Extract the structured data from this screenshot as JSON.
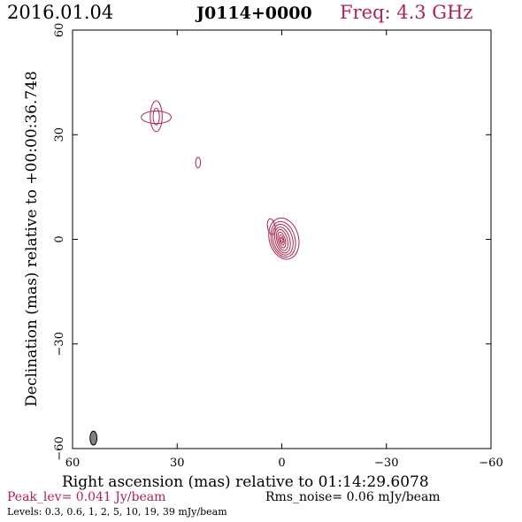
{
  "header": {
    "date": "2016.01.04",
    "source": "J0114+0000",
    "freq": "Freq: 4.3 GHz"
  },
  "footer": {
    "peak": "Peak_lev=  0.041 Jy/beam",
    "rms": "Rms_noise= 0.06 mJy/beam",
    "levels": "Levels: 0.3, 0.6,    1,    2,    5,   10,   19,   39 mJy/beam"
  },
  "colors": {
    "contour": "#b0244c",
    "beam_fill": "#808080",
    "freq_text": "#b0244c",
    "peak_text": "#b0244c"
  },
  "chart_data": {
    "type": "contour",
    "title": "J0114+0000",
    "xlabel": "Right ascension (mas) relative to 01:14:29.6078",
    "ylabel": "Declination (mas) relative to +00:00:36.748",
    "xlim": [
      60,
      -60
    ],
    "ylim": [
      -60,
      60
    ],
    "xticks": [
      60,
      30,
      0,
      -30,
      -60
    ],
    "yticks": [
      -60,
      -30,
      0,
      30,
      60
    ],
    "xtick_labels": [
      "60",
      "30",
      "0",
      "−30",
      "−60"
    ],
    "ytick_labels": [
      "−60",
      "−30",
      "0",
      "30",
      "60"
    ],
    "contour_levels_mJy": [
      0.3,
      0.6,
      1,
      2,
      5,
      10,
      19,
      39
    ],
    "components": [
      {
        "label": "core",
        "x": 0,
        "y": 0,
        "contours": [
          {
            "rx": 4.2,
            "ry": 6.0,
            "angle": -15,
            "dx": -0.6,
            "dy": 0.2
          },
          {
            "rx": 3.4,
            "ry": 5.2,
            "angle": -15,
            "dx": -0.4,
            "dy": 0.0
          },
          {
            "rx": 2.8,
            "ry": 4.5,
            "angle": -15,
            "dx": -0.3,
            "dy": -0.1
          },
          {
            "rx": 2.1,
            "ry": 3.8,
            "angle": -15,
            "dx": -0.2,
            "dy": -0.2
          },
          {
            "rx": 1.5,
            "ry": 3.1,
            "angle": -15,
            "dx": -0.1,
            "dy": -0.2
          },
          {
            "rx": 1.0,
            "ry": 2.3,
            "angle": -15,
            "dx": 0.0,
            "dy": -0.2
          },
          {
            "rx": 0.6,
            "ry": 1.5,
            "angle": -15,
            "dx": 0.0,
            "dy": -0.2
          },
          {
            "rx": 0.3,
            "ry": 0.8,
            "angle": -15,
            "dx": 0.0,
            "dy": -0.2
          }
        ]
      },
      {
        "label": "core-extension",
        "x": 3.0,
        "y": 3.6,
        "contours": [
          {
            "rx": 1.1,
            "ry": 2.3,
            "angle": -10,
            "dx": 0,
            "dy": 0
          }
        ]
      },
      {
        "label": "component-36-35",
        "x": 36.0,
        "y": 35.0,
        "contours": [
          {
            "rx": 1.7,
            "ry": 4.4,
            "angle": 0,
            "dx": 0,
            "dy": 0.3
          },
          {
            "rx": 4.3,
            "ry": 1.8,
            "angle": 0,
            "dx": 0,
            "dy": 0
          },
          {
            "rx": 0.9,
            "ry": 2.4,
            "angle": 0,
            "dx": 0,
            "dy": 0.2
          }
        ]
      },
      {
        "label": "component-24-22",
        "x": 24.0,
        "y": 22.0,
        "contours": [
          {
            "rx": 0.7,
            "ry": 1.5,
            "angle": 0,
            "dx": 0,
            "dy": 0
          }
        ]
      }
    ],
    "beam": {
      "x": 54.0,
      "y": -57.0,
      "major_mas": 4.0,
      "minor_mas": 2.0,
      "pa_deg": 0
    }
  }
}
